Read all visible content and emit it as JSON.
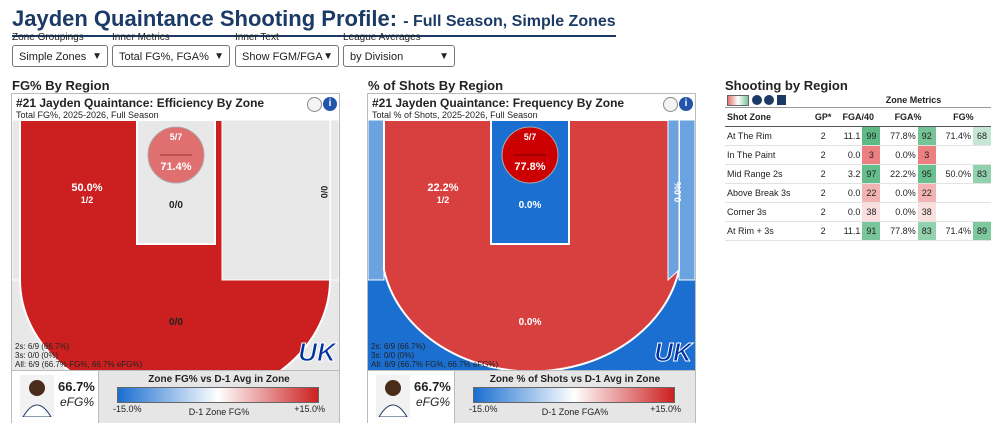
{
  "header": {
    "title": "Jayden Quaintance Shooting Profile:",
    "subtitle": "- Full Season, Simple Zones"
  },
  "controls": [
    {
      "label": "Zone Groupings",
      "value": "Simple Zones"
    },
    {
      "label": "Inner Metrics",
      "value": "Total FG%, FGA%"
    },
    {
      "label": "Inner Text",
      "value": "Show FGM/FGA"
    },
    {
      "label": "League Averages",
      "value": "by Division"
    }
  ],
  "fg_section": {
    "heading": "FG% By Region",
    "title": "#21 Jayden Quaintance: Efficiency By Zone",
    "subtitle": "Total FG%, 2025-2026, Full Season",
    "zones": {
      "mid_left_pct": "50.0%",
      "mid_left_frac": "1/2",
      "rim_frac": "5/7",
      "rim_pct": "71.4%",
      "paint_frac": "0/0",
      "mid_right_frac": "0/0",
      "three_frac": "0/0"
    },
    "summary": [
      "2s: 6/9 (66.7%)",
      "3s: 0/0 (0%)",
      "All: 6/9 (66.7% FG%, 66.7% eFG%)"
    ],
    "legend": {
      "big_value": "66.7%",
      "unit": "eFG%",
      "title": "Zone FG% vs D-1 Avg in Zone",
      "min": "-15.0%",
      "max": "+15.0%",
      "axis": "D-1 Zone FG%"
    }
  },
  "freq_section": {
    "heading": "% of Shots By Region",
    "title": "#21 Jayden Quaintance: Frequency By Zone",
    "subtitle": "Total % of Shots, 2025-2026, Full Season",
    "zones": {
      "mid_left_pct": "22.2%",
      "mid_left_frac": "1/2",
      "rim_frac": "5/7",
      "rim_pct": "77.8%",
      "paint_pct": "0.0%",
      "mid_right_pct": "0.0%",
      "three_pct": "0.0%"
    },
    "summary": [
      "2s: 6/9 (66.7%)",
      "3s: 0/0 (0%)",
      "All: 6/9 (66.7% FG%, 66.7% eFG%)"
    ],
    "legend": {
      "big_value": "66.7%",
      "unit": "eFG%",
      "title": "Zone % of Shots vs D-1 Avg in Zone",
      "min": "-15.0%",
      "max": "+15.0%",
      "axis": "D-1 Zone FGA%"
    }
  },
  "table_section": {
    "heading": "Shooting by Region",
    "group_header": "Zone Metrics",
    "columns": [
      "Shot Zone",
      "GP*",
      "FGA/40",
      "FGA%",
      "FG%"
    ],
    "rows": [
      {
        "zone": "At The Rim",
        "gp": "2",
        "fga40": "11.1",
        "fga40_pct": "99",
        "fgapct": "77.8%",
        "fgapct_pct": "92",
        "fg": "71.4%",
        "fg_pct": "68"
      },
      {
        "zone": "In The Paint",
        "gp": "2",
        "fga40": "0.0",
        "fga40_pct": "3",
        "fgapct": "0.0%",
        "fgapct_pct": "3",
        "fg": "",
        "fg_pct": ""
      },
      {
        "zone": "Mid Range 2s",
        "gp": "2",
        "fga40": "3.2",
        "fga40_pct": "97",
        "fgapct": "22.2%",
        "fgapct_pct": "95",
        "fg": "50.0%",
        "fg_pct": "83"
      },
      {
        "zone": "Above Break 3s",
        "gp": "2",
        "fga40": "0.0",
        "fga40_pct": "22",
        "fgapct": "0.0%",
        "fgapct_pct": "22",
        "fg": "",
        "fg_pct": ""
      },
      {
        "zone": "Corner 3s",
        "gp": "2",
        "fga40": "0.0",
        "fga40_pct": "38",
        "fgapct": "0.0%",
        "fgapct_pct": "38",
        "fg": "",
        "fg_pct": ""
      },
      {
        "zone": "At Rim + 3s",
        "gp": "2",
        "fga40": "11.1",
        "fga40_pct": "91",
        "fgapct": "77.8%",
        "fgapct_pct": "83",
        "fg": "71.4%",
        "fg_pct": "89"
      }
    ]
  },
  "colors": {
    "red": "#cc2020",
    "lightred": "#e07070",
    "blue": "#1a6fd0",
    "lightblue": "#6aa3e0",
    "grey": "#e8e8e8",
    "navy": "#1b3a66"
  }
}
